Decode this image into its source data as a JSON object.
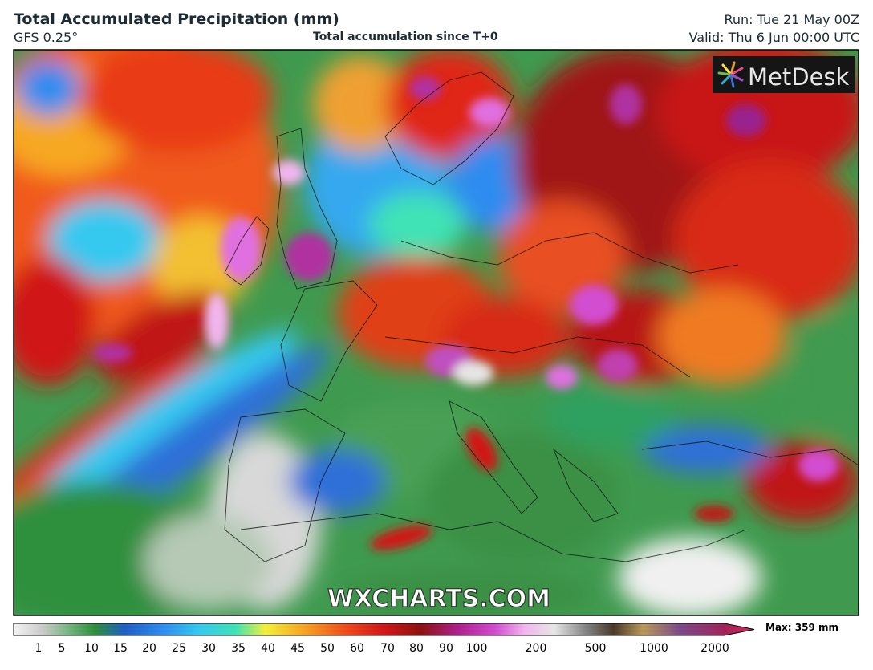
{
  "header": {
    "title": "Total Accumulated Precipitation (mm)",
    "model": "GFS 0.25°",
    "subtitle": "Total accumulation since T+0",
    "run": "Run: Tue 21 May 00Z",
    "valid": "Valid: Thu 6 Jun 00:00 UTC"
  },
  "logo": "MetDesk",
  "watermark": "WXCHARTS.COM",
  "colorbar": {
    "ticks": [
      1,
      5,
      10,
      15,
      20,
      25,
      30,
      35,
      40,
      45,
      50,
      60,
      70,
      80,
      90,
      100,
      200,
      500,
      1000,
      2000
    ],
    "max_label": "Max: 359 mm"
  }
}
